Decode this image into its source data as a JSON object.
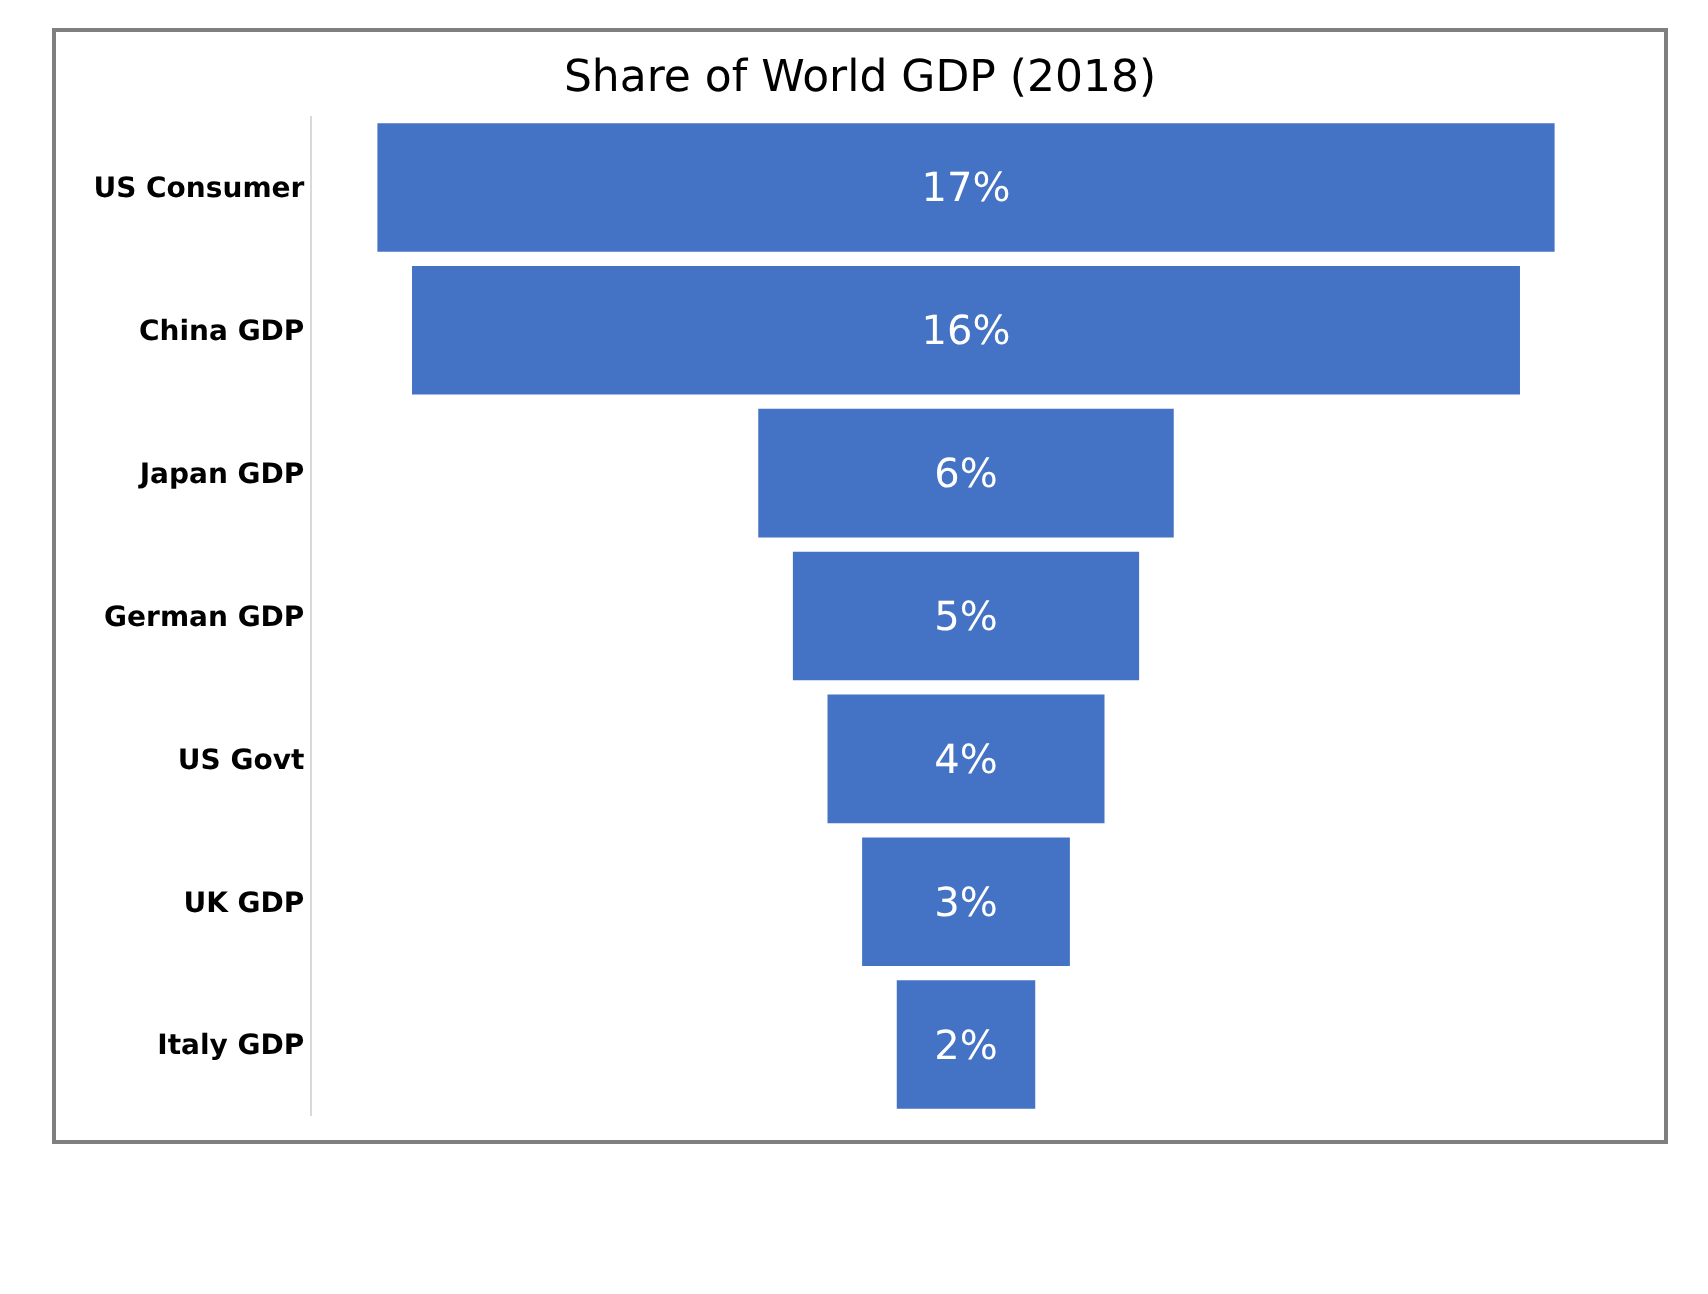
{
  "chart_data": {
    "type": "other",
    "title": "Share of World GDP (2018)",
    "categories": [
      "US Consumer",
      "China GDP",
      "Japan GDP",
      "German GDP",
      "US Govt",
      "UK GDP",
      "Italy GDP"
    ],
    "values": [
      17,
      16,
      6,
      5,
      4,
      3,
      2
    ],
    "color": "#4472c4",
    "value_labels": [
      "17%",
      "16%",
      "6%",
      "5%",
      "4%",
      "3%",
      "2%"
    ]
  }
}
